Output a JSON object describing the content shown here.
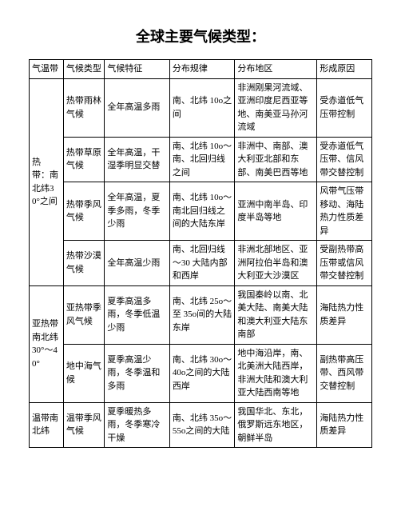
{
  "title": "全球主要气候类型：",
  "columns": [
    "气温带",
    "气候类型",
    "气候特征",
    "分布规律",
    "分布地区",
    "形成原因"
  ],
  "groups": [
    {
      "zone": "热　带：南北纬30°之间",
      "rows": [
        {
          "type": "热带雨林气候",
          "feature": "全年高温多雨",
          "distribution": "南、北纬 10o之间",
          "region": "非洲刚果河流域、亚洲印度尼西亚等地、南美亚马孙河流域",
          "cause": "受赤道低气压带控制"
        },
        {
          "type": "热带草原气候",
          "feature": "全年高温，干湿季明显交替",
          "distribution": "南、北纬 10o～南、北回归线之间",
          "region": "非洲中、南部、澳大利亚北部和东部、南美巴西等地",
          "cause": "受赤道低气压带、信风带交替控制"
        },
        {
          "type": "热带季风气候",
          "feature": "全年高温，夏季多雨，冬季少雨",
          "distribution": "南、北纬 10o～南北回归线之间的大陆东岸",
          "region": "亚洲中南半岛、印度半岛等地",
          "cause": "风带气压带移动、海陆热力性质差异"
        },
        {
          "type": "热带沙漠气候",
          "feature": "全年高温少雨",
          "distribution": "南、北回归线～30 大陆内部和西岸",
          "region": "非洲北部地区、亚洲阿拉伯半岛和澳大利亚大沙漠区",
          "cause": "受副热带高压带或信风带交替控制"
        }
      ]
    },
    {
      "zone": "亚热带南北纬30°～40°",
      "rows": [
        {
          "type": "亚热带季风气候",
          "feature": "夏季高温多雨，冬季低温少雨",
          "distribution": "南、北纬 25o～至 35o间的大陆东岸",
          "region": "我国秦岭以南、北美大陆、南美大陆和澳大利亚大陆东南部",
          "cause": "海陆热力性质差异"
        },
        {
          "type": "地中海气候",
          "feature": "夏季高温少雨，冬季温和多雨",
          "distribution": "南、北纬 30o～40o之间的大陆西岸",
          "region": "地中海沿岸，南、北美洲大陆西岸，非洲大陆和澳大利亚大陆西南等地",
          "cause": "副热带高压带、西风带交替控制"
        }
      ]
    },
    {
      "zone": "温带南北纬",
      "rows": [
        {
          "type": "温带季风气候",
          "feature": "夏季暖热多雨，冬季寒冷干燥",
          "distribution": "南、北纬 35o～55o之间的大陆",
          "region": "我国华北、东北，俄罗斯远东地区，朝鲜半岛",
          "cause": "海陆热力性质差异"
        }
      ]
    }
  ]
}
